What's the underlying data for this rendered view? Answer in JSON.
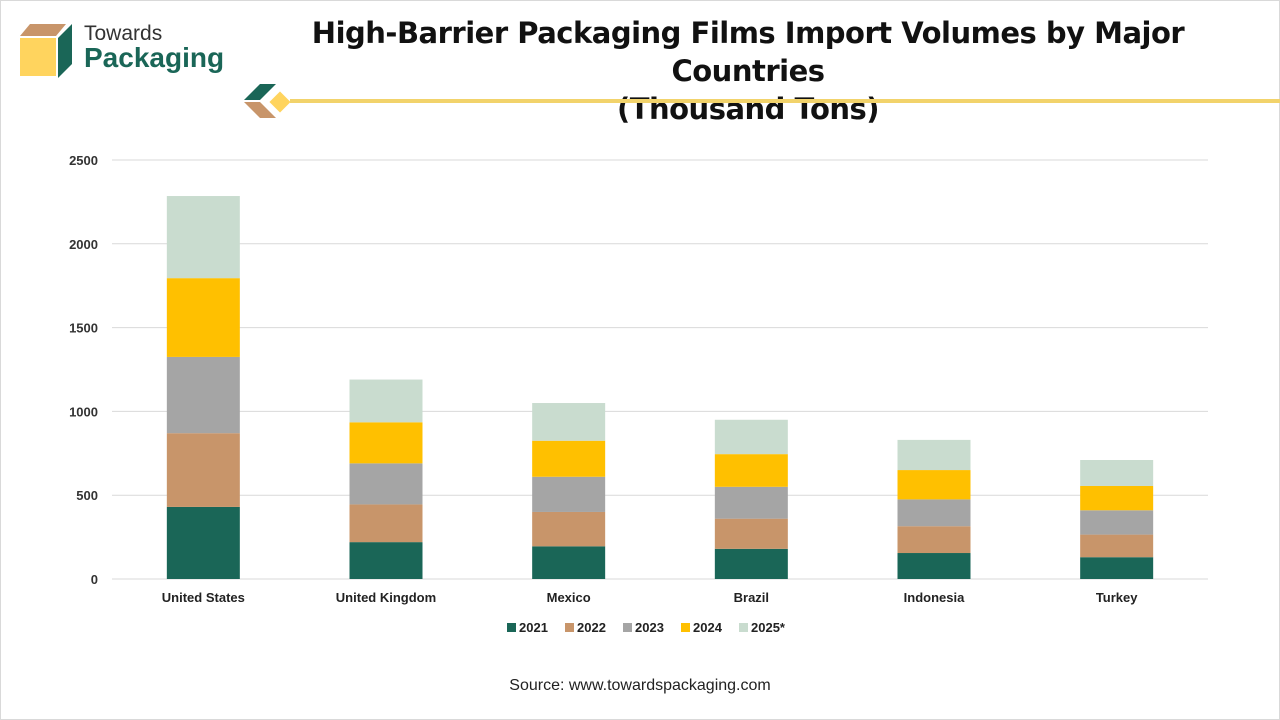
{
  "brand": {
    "line1": "Towards",
    "line2": "Packaging"
  },
  "source": "Source: www.towardspackaging.com",
  "chart_data": {
    "type": "bar",
    "stacked": true,
    "title": "High-Barrier Packaging Films Import Volumes by Major Countries (Thousand Tons)",
    "title_lines": [
      "High-Barrier Packaging Films Import Volumes by Major Countries",
      "(Thousand Tons)"
    ],
    "xlabel": "",
    "ylabel": "",
    "ylim": [
      0,
      2500
    ],
    "yticks": [
      0,
      500,
      1000,
      1500,
      2000,
      2500
    ],
    "grid": true,
    "legend_position": "bottom",
    "categories": [
      "United States",
      "United Kingdom",
      "Mexico",
      "Brazil",
      "Indonesia",
      "Turkey"
    ],
    "series": [
      {
        "name": "2021",
        "color": "#1a6657",
        "values": [
          430,
          220,
          195,
          180,
          155,
          130
        ]
      },
      {
        "name": "2022",
        "color": "#c8956a",
        "values": [
          440,
          225,
          205,
          180,
          160,
          135
        ]
      },
      {
        "name": "2023",
        "color": "#a5a5a5",
        "values": [
          455,
          245,
          210,
          190,
          160,
          145
        ]
      },
      {
        "name": "2024",
        "color": "#ffc000",
        "values": [
          470,
          245,
          215,
          195,
          175,
          145
        ]
      },
      {
        "name": "2025*",
        "color": "#c9dccf",
        "values": [
          490,
          255,
          225,
          205,
          180,
          155
        ]
      }
    ]
  }
}
